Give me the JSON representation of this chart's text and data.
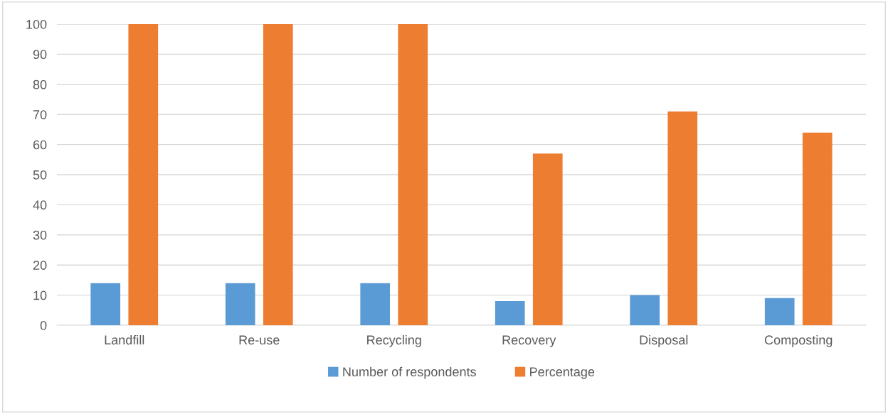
{
  "chart_data": {
    "type": "bar",
    "categories": [
      "Landfill",
      "Re-use",
      "Recycling",
      "Recovery",
      "Disposal",
      "Composting"
    ],
    "series": [
      {
        "name": "Number of respondents",
        "color": "#5b9bd5",
        "values": [
          14,
          14,
          14,
          8,
          10,
          9
        ]
      },
      {
        "name": "Percentage",
        "color": "#ed7d31",
        "values": [
          100,
          100,
          100,
          57,
          71,
          64
        ]
      }
    ],
    "ylim": [
      0,
      100
    ],
    "yticks": [
      0,
      10,
      20,
      30,
      40,
      50,
      60,
      70,
      80,
      90,
      100
    ],
    "grid": "y",
    "legend": "bottom"
  }
}
